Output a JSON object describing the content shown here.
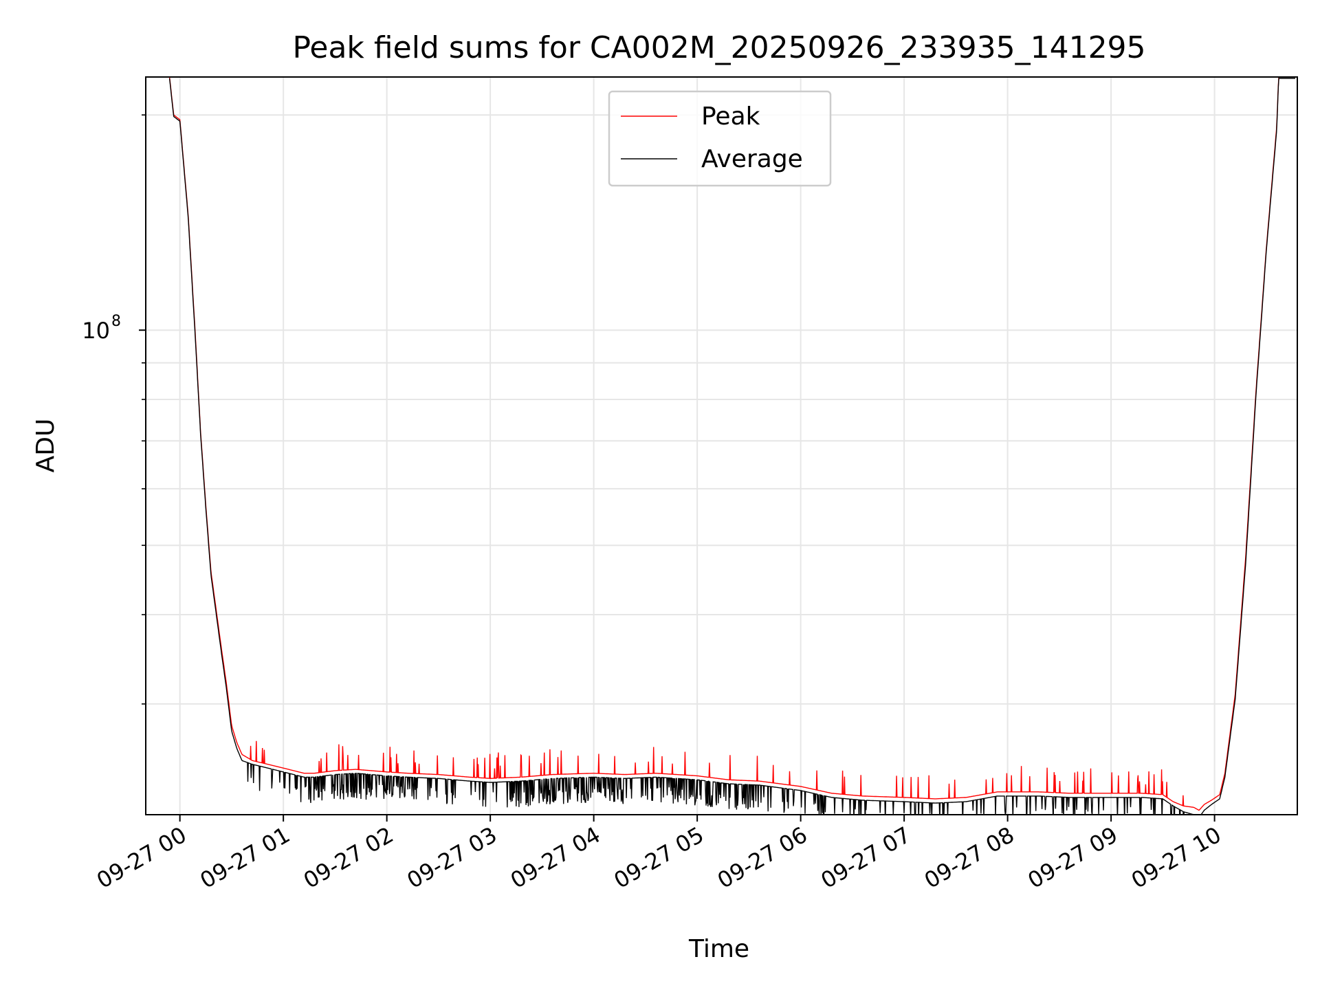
{
  "chart_data": {
    "type": "line",
    "title": "Peak field sums for CA002M_20250926_233935_141295",
    "xlabel": "Time",
    "ylabel": "ADU",
    "yscale": "log",
    "ylim": [
      21000000,
      226000000
    ],
    "xlim": [
      -0.33,
      10.8
    ],
    "x_unit": "hours after 2025-09-27 00:00",
    "x_ticks": [
      {
        "value": 0,
        "label": "09-27 00"
      },
      {
        "value": 1,
        "label": "09-27 01"
      },
      {
        "value": 2,
        "label": "09-27 02"
      },
      {
        "value": 3,
        "label": "09-27 03"
      },
      {
        "value": 4,
        "label": "09-27 04"
      },
      {
        "value": 5,
        "label": "09-27 05"
      },
      {
        "value": 6,
        "label": "09-27 06"
      },
      {
        "value": 7,
        "label": "09-27 07"
      },
      {
        "value": 8,
        "label": "09-27 08"
      },
      {
        "value": 9,
        "label": "09-27 09"
      },
      {
        "value": 10,
        "label": "09-27 10"
      }
    ],
    "y_major_ticks": [
      {
        "value": 100000000,
        "base": "10",
        "exp": "8"
      }
    ],
    "y_minor_ticks": [
      30000000,
      40000000,
      50000000,
      60000000,
      70000000,
      80000000,
      90000000,
      200000000
    ],
    "grid": true,
    "legend": {
      "position": "top-center",
      "entries": [
        "Peak",
        "Average"
      ]
    },
    "series": [
      {
        "name": "Peak",
        "color": "#ff0000",
        "x": [
          -0.1,
          -0.06,
          0.0,
          0.08,
          0.15,
          0.2,
          0.25,
          0.3,
          0.4,
          0.45,
          0.5,
          0.55,
          0.6,
          0.7,
          0.8,
          0.9,
          1.0,
          1.1,
          1.2,
          1.3,
          1.5,
          1.7,
          2.0,
          2.2,
          2.5,
          2.8,
          3.0,
          3.3,
          3.6,
          4.0,
          4.3,
          4.6,
          5.0,
          5.3,
          5.6,
          6.0,
          6.3,
          6.6,
          7.0,
          7.3,
          7.6,
          7.9,
          8.0,
          8.3,
          8.6,
          9.0,
          9.3,
          9.5,
          9.6,
          9.7,
          9.8,
          9.85,
          9.9,
          9.97,
          10.05,
          10.1,
          10.2,
          10.3,
          10.4,
          10.5,
          10.6,
          10.62,
          10.78
        ],
        "values": [
          226000000,
          200000000,
          197000000,
          145000000,
          98000000,
          72000000,
          57000000,
          46000000,
          36000000,
          32000000,
          28000000,
          26500000,
          25500000,
          25000000,
          24800000,
          24600000,
          24400000,
          24200000,
          24000000,
          24000000,
          24200000,
          24300000,
          24100000,
          24000000,
          23900000,
          23700000,
          23600000,
          23700000,
          23900000,
          24000000,
          23900000,
          24000000,
          23800000,
          23500000,
          23400000,
          23000000,
          22500000,
          22300000,
          22200000,
          22100000,
          22200000,
          22600000,
          22600000,
          22600000,
          22500000,
          22500000,
          22500000,
          22400000,
          21900000,
          21600000,
          21500000,
          21300000,
          21700000,
          22000000,
          22400000,
          24000000,
          31000000,
          48000000,
          82000000,
          130000000,
          192000000,
          226000000,
          226000000
        ]
      },
      {
        "name": "Average",
        "color": "#000000",
        "x": [
          -0.1,
          -0.06,
          0.0,
          0.08,
          0.15,
          0.2,
          0.25,
          0.3,
          0.4,
          0.45,
          0.5,
          0.55,
          0.6,
          0.7,
          0.8,
          0.9,
          1.0,
          1.1,
          1.2,
          1.3,
          1.5,
          1.7,
          2.0,
          2.2,
          2.5,
          2.8,
          3.0,
          3.3,
          3.6,
          4.0,
          4.3,
          4.6,
          5.0,
          5.3,
          5.6,
          6.0,
          6.3,
          6.6,
          7.0,
          7.3,
          7.6,
          7.9,
          8.0,
          8.3,
          8.6,
          9.0,
          9.3,
          9.5,
          9.6,
          9.7,
          9.8,
          9.85,
          9.9,
          9.97,
          10.05,
          10.1,
          10.2,
          10.3,
          10.4,
          10.5,
          10.6,
          10.62,
          10.78
        ],
        "values": [
          225000000,
          199000000,
          196000000,
          144000000,
          97000000,
          71500000,
          56500000,
          45500000,
          35500000,
          31500000,
          27500000,
          26000000,
          25000000,
          24700000,
          24500000,
          24300000,
          24100000,
          23900000,
          23700000,
          23700000,
          23900000,
          24000000,
          23800000,
          23700000,
          23600000,
          23400000,
          23300000,
          23400000,
          23600000,
          23700000,
          23600000,
          23700000,
          23500000,
          23200000,
          23100000,
          22700000,
          22200000,
          22000000,
          21900000,
          21800000,
          21900000,
          22300000,
          22300000,
          22300000,
          22200000,
          22200000,
          22200000,
          22100000,
          21600000,
          21200000,
          21000000,
          20800000,
          21300000,
          21700000,
          22100000,
          23700000,
          30500000,
          47000000,
          81000000,
          129000000,
          190000000,
          225000000,
          225000000
        ]
      }
    ],
    "noise_note": "frequent downward spikes in Average below Peak between 00:30 and 09:50",
    "colors": {
      "frame": "#000000",
      "grid": "#e6e6e6",
      "legend_border": "#cccccc"
    }
  }
}
